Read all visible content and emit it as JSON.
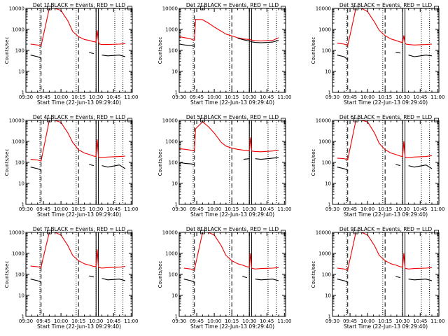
{
  "colors": {
    "events": "#000000",
    "lld": "#ee0000",
    "axes": "#000000",
    "background": "#ffffff"
  },
  "chart_data": [
    {
      "type": "line",
      "title": "Det 1f BLACK = Events, RED = LLD",
      "xlabel": "Start Time (22-Jun-13 09:29:40)",
      "ylabel": "Counts/sec",
      "x_ticks": [
        "09:30",
        "09:45",
        "10:00",
        "10:15",
        "10:30",
        "10:45",
        "11:00"
      ],
      "y_ticks": [
        "1",
        "10",
        "100",
        "1000",
        "10000"
      ],
      "x_range_minutes": [
        0,
        91
      ],
      "y_range": [
        1,
        10000
      ],
      "y_scale": "log",
      "x_minutes": [
        4,
        10,
        12,
        13,
        14,
        20,
        25,
        30,
        36,
        40,
        45,
        50,
        54,
        58,
        60,
        61,
        62,
        63,
        65,
        70,
        80,
        85
      ],
      "series": [
        {
          "name": "LLD",
          "values": [
            200,
            180,
            170,
            165,
            300,
            10000,
            10000,
            8000,
            2500,
            800,
            450,
            330,
            300,
            260,
            250,
            900,
            250,
            200,
            190,
            190,
            200,
            210
          ]
        },
        {
          "name": "Events",
          "values": [
            60,
            50,
            45,
            40,
            null,
            null,
            null,
            null,
            null,
            null,
            null,
            null,
            80,
            70,
            null,
            null,
            null,
            null,
            60,
            55,
            60,
            50
          ]
        }
      ]
    },
    {
      "type": "line",
      "title": "Det 2f BLACK = Events, RED = LLD",
      "xlabel": "Start Time (22-Jun-13 09:29:40)",
      "ylabel": "Counts/sec",
      "x_ticks": [
        "09:30",
        "09:45",
        "10:00",
        "10:15",
        "10:30",
        "10:45",
        "11:00"
      ],
      "y_ticks": [
        "1",
        "10",
        "100",
        "1000",
        "10000"
      ],
      "x_range_minutes": [
        0,
        91
      ],
      "y_range": [
        1,
        10000
      ],
      "y_scale": "log",
      "x_minutes": [
        0,
        5,
        10,
        13,
        14,
        20,
        25,
        30,
        40,
        50,
        55,
        60,
        61,
        62,
        63,
        65,
        70,
        80,
        85
      ],
      "series": [
        {
          "name": "LLD",
          "values": [
            450,
            400,
            350,
            300,
            3000,
            2900,
            2000,
            1300,
            600,
            400,
            350,
            330,
            320,
            310,
            300,
            290,
            280,
            300,
            400
          ]
        },
        {
          "name": "Events",
          "values": [
            200,
            180,
            170,
            160,
            null,
            null,
            null,
            null,
            null,
            380,
            320,
            280,
            270,
            260,
            250,
            240,
            230,
            250,
            300
          ]
        }
      ]
    },
    {
      "type": "line",
      "title": "Det 3f BLACK = Events, RED = LLD",
      "xlabel": "Start Time (22-Jun-13 09:29:40)",
      "ylabel": "Counts/sec",
      "x_ticks": [
        "09:30",
        "09:45",
        "10:00",
        "10:15",
        "10:30",
        "10:45",
        "11:00"
      ],
      "y_ticks": [
        "1",
        "10",
        "100",
        "1000",
        "10000"
      ],
      "x_range_minutes": [
        0,
        91
      ],
      "y_range": [
        1,
        10000
      ],
      "y_scale": "log",
      "x_minutes": [
        4,
        10,
        12,
        13,
        14,
        20,
        25,
        30,
        36,
        40,
        45,
        50,
        54,
        58,
        60,
        61,
        62,
        63,
        65,
        70,
        80,
        85
      ],
      "series": [
        {
          "name": "LLD",
          "values": [
            220,
            200,
            180,
            170,
            300,
            10000,
            10000,
            7000,
            2200,
            900,
            500,
            350,
            300,
            250,
            240,
            500,
            220,
            200,
            190,
            180,
            190,
            200
          ]
        },
        {
          "name": "Events",
          "values": [
            60,
            50,
            40,
            35,
            null,
            null,
            null,
            null,
            null,
            null,
            null,
            null,
            80,
            75,
            null,
            null,
            null,
            null,
            60,
            50,
            60,
            55
          ]
        }
      ]
    },
    {
      "type": "line",
      "title": "Det 4f BLACK = Events, RED = LLD",
      "xlabel": "Start Time (22-Jun-13 09:29:40)",
      "ylabel": "Counts/sec",
      "x_ticks": [
        "09:30",
        "09:45",
        "10:00",
        "10:15",
        "10:30",
        "10:45",
        "11:00"
      ],
      "y_ticks": [
        "1",
        "10",
        "100",
        "1000",
        "10000"
      ],
      "x_range_minutes": [
        0,
        91
      ],
      "y_range": [
        1,
        10000
      ],
      "y_scale": "log",
      "x_minutes": [
        4,
        10,
        12,
        13,
        14,
        20,
        25,
        30,
        36,
        40,
        45,
        50,
        54,
        58,
        60,
        61,
        62,
        63,
        65,
        70,
        80,
        85
      ],
      "series": [
        {
          "name": "LLD",
          "values": [
            140,
            130,
            120,
            115,
            220,
            10000,
            10000,
            8000,
            2500,
            900,
            400,
            280,
            240,
            200,
            190,
            1200,
            180,
            170,
            170,
            180,
            190,
            200
          ]
        },
        {
          "name": "Events",
          "values": [
            60,
            50,
            45,
            40,
            null,
            null,
            null,
            null,
            null,
            null,
            null,
            null,
            80,
            70,
            null,
            null,
            null,
            null,
            70,
            60,
            75,
            50
          ]
        }
      ]
    },
    {
      "type": "line",
      "title": "Det 5f BLACK = Events, RED = LLD",
      "xlabel": "Start Time (22-Jun-13 09:29:40)",
      "ylabel": "Counts/sec",
      "x_ticks": [
        "09:30",
        "09:45",
        "10:00",
        "10:15",
        "10:30",
        "10:45",
        "11:00"
      ],
      "y_ticks": [
        "1",
        "10",
        "100",
        "1000",
        "10000"
      ],
      "x_range_minutes": [
        0,
        91
      ],
      "y_range": [
        1,
        10000
      ],
      "y_scale": "log",
      "x_minutes": [
        0,
        5,
        10,
        13,
        14,
        20,
        25,
        30,
        36,
        40,
        45,
        50,
        55,
        60,
        61,
        62,
        63,
        65,
        70,
        80,
        85
      ],
      "series": [
        {
          "name": "LLD",
          "values": [
            450,
            420,
            380,
            350,
            4000,
            8500,
            5000,
            2500,
            900,
            600,
            480,
            420,
            380,
            350,
            1500,
            350,
            340,
            330,
            320,
            350,
            380
          ]
        },
        {
          "name": "Events",
          "values": [
            100,
            90,
            85,
            80,
            null,
            null,
            null,
            null,
            null,
            null,
            null,
            null,
            140,
            150,
            null,
            null,
            null,
            150,
            140,
            160,
            170
          ]
        }
      ]
    },
    {
      "type": "line",
      "title": "Det 6f BLACK = Events, RED = LLD",
      "xlabel": "Start Time (22-Jun-13 09:29:40)",
      "ylabel": "Counts/sec",
      "x_ticks": [
        "09:30",
        "09:45",
        "10:00",
        "10:15",
        "10:30",
        "10:45",
        "11:00"
      ],
      "y_ticks": [
        "1",
        "10",
        "100",
        "1000",
        "10000"
      ],
      "x_range_minutes": [
        0,
        91
      ],
      "y_range": [
        1,
        10000
      ],
      "y_scale": "log",
      "x_minutes": [
        4,
        10,
        12,
        13,
        14,
        20,
        25,
        30,
        36,
        40,
        45,
        50,
        54,
        58,
        60,
        61,
        62,
        63,
        65,
        70,
        80,
        85
      ],
      "series": [
        {
          "name": "LLD",
          "values": [
            160,
            150,
            140,
            130,
            250,
            10000,
            10000,
            8500,
            2500,
            800,
            400,
            280,
            240,
            200,
            190,
            1000,
            180,
            170,
            170,
            180,
            190,
            210
          ]
        },
        {
          "name": "Events",
          "values": [
            60,
            50,
            45,
            40,
            null,
            null,
            null,
            null,
            null,
            null,
            null,
            null,
            80,
            70,
            null,
            null,
            null,
            null,
            70,
            60,
            75,
            50
          ]
        }
      ]
    },
    {
      "type": "line",
      "title": "Det 7f BLACK = Events, RED = LLD",
      "xlabel": "Start Time (22-Jun-13 09:29:40)",
      "ylabel": "Counts/sec",
      "x_ticks": [
        "09:30",
        "09:45",
        "10:00",
        "10:15",
        "10:30",
        "10:45",
        "11:00"
      ],
      "y_ticks": [
        "1",
        "10",
        "100",
        "1000",
        "10000"
      ],
      "x_range_minutes": [
        0,
        91
      ],
      "y_range": [
        1,
        10000
      ],
      "y_scale": "log",
      "x_minutes": [
        4,
        10,
        12,
        13,
        14,
        20,
        25,
        30,
        36,
        40,
        45,
        50,
        54,
        58,
        60,
        61,
        62,
        63,
        65,
        70,
        80,
        85
      ],
      "series": [
        {
          "name": "LLD",
          "values": [
            250,
            230,
            220,
            210,
            400,
            10000,
            10000,
            7500,
            2300,
            800,
            450,
            320,
            280,
            240,
            230,
            1500,
            220,
            210,
            200,
            210,
            220,
            240
          ]
        },
        {
          "name": "Events",
          "values": [
            60,
            50,
            45,
            40,
            null,
            null,
            null,
            null,
            null,
            null,
            null,
            null,
            85,
            75,
            null,
            null,
            null,
            null,
            65,
            55,
            60,
            50
          ]
        }
      ]
    },
    {
      "type": "line",
      "title": "Det 8f BLACK = Events, RED = LLD",
      "xlabel": "Start Time (22-Jun-13 09:29:40)",
      "ylabel": "Counts/sec",
      "x_ticks": [
        "09:30",
        "09:45",
        "10:00",
        "10:15",
        "10:30",
        "10:45",
        "11:00"
      ],
      "y_ticks": [
        "1",
        "10",
        "100",
        "1000",
        "10000"
      ],
      "x_range_minutes": [
        0,
        91
      ],
      "y_range": [
        1,
        10000
      ],
      "y_scale": "log",
      "x_minutes": [
        4,
        10,
        12,
        13,
        14,
        20,
        25,
        30,
        36,
        40,
        45,
        50,
        54,
        58,
        60,
        61,
        62,
        63,
        65,
        70,
        80,
        85
      ],
      "series": [
        {
          "name": "LLD",
          "values": [
            200,
            180,
            170,
            160,
            300,
            10000,
            10000,
            7500,
            2300,
            800,
            450,
            320,
            280,
            230,
            220,
            1000,
            200,
            190,
            180,
            190,
            200,
            210
          ]
        },
        {
          "name": "Events",
          "values": [
            60,
            50,
            45,
            40,
            null,
            null,
            null,
            null,
            null,
            null,
            null,
            null,
            80,
            70,
            null,
            null,
            null,
            null,
            60,
            55,
            60,
            50
          ]
        }
      ]
    },
    {
      "type": "line",
      "title": "Det 9f BLACK = Events, RED = LLD",
      "xlabel": "Start Time (22-Jun-13 09:29:40)",
      "ylabel": "Counts/sec",
      "x_ticks": [
        "09:30",
        "09:45",
        "10:00",
        "10:15",
        "10:30",
        "10:45",
        "11:00"
      ],
      "y_ticks": [
        "1",
        "10",
        "100",
        "1000",
        "10000"
      ],
      "x_range_minutes": [
        0,
        91
      ],
      "y_range": [
        1,
        10000
      ],
      "y_scale": "log",
      "x_minutes": [
        4,
        10,
        12,
        13,
        14,
        20,
        25,
        30,
        36,
        40,
        45,
        50,
        54,
        58,
        60,
        61,
        62,
        63,
        65,
        70,
        80,
        85
      ],
      "series": [
        {
          "name": "LLD",
          "values": [
            200,
            180,
            170,
            160,
            300,
            10000,
            10000,
            7500,
            2300,
            800,
            450,
            320,
            280,
            230,
            220,
            1000,
            200,
            190,
            180,
            190,
            200,
            210
          ]
        },
        {
          "name": "Events",
          "values": [
            60,
            50,
            45,
            40,
            null,
            null,
            null,
            null,
            null,
            null,
            null,
            null,
            80,
            70,
            null,
            null,
            null,
            null,
            60,
            55,
            60,
            50
          ]
        }
      ]
    }
  ]
}
